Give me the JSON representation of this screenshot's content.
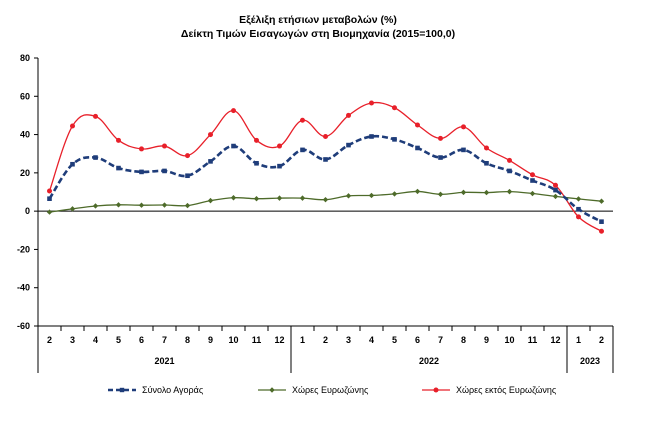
{
  "chart_data": {
    "type": "line",
    "title": "Εξέλιξη ετήσιων μεταβολών (%)",
    "subtitle": "Δείκτη Τιμών Εισαγωγών στη Βιομηχανία (2015=100,0)",
    "categories": [
      "2",
      "3",
      "4",
      "5",
      "6",
      "7",
      "8",
      "9",
      "10",
      "11",
      "12",
      "1",
      "2",
      "3",
      "4",
      "5",
      "6",
      "7",
      "8",
      "9",
      "10",
      "11",
      "12",
      "1",
      "2"
    ],
    "year_groups": [
      {
        "label": "2021",
        "start": 0,
        "end": 10
      },
      {
        "label": "2022",
        "start": 11,
        "end": 22
      },
      {
        "label": "2023",
        "start": 23,
        "end": 24
      }
    ],
    "ylim": [
      -60,
      80
    ],
    "yticks": [
      -60,
      -40,
      -20,
      0,
      20,
      40,
      60,
      80
    ],
    "grid": false,
    "legend_position": "bottom",
    "series": [
      {
        "name": "Σύνολο Αγοράς",
        "color": "#1f3d7a",
        "style": "dashed",
        "marker": "square",
        "values": [
          6.5,
          24.5,
          28,
          22.5,
          20.5,
          21,
          18.5,
          26,
          34,
          25,
          23.5,
          32,
          27,
          34.5,
          39,
          37.5,
          33,
          28,
          32,
          25,
          21,
          16,
          11,
          1,
          -5.5
        ]
      },
      {
        "name": "Χώρες Ευρωζώνης",
        "color": "#4e6b2a",
        "style": "solid",
        "marker": "diamond",
        "values": [
          -0.5,
          1.2,
          2.7,
          3.3,
          3.1,
          3.2,
          2.9,
          5.5,
          7,
          6.5,
          6.8,
          6.8,
          6,
          8,
          8.2,
          9,
          10.3,
          8.8,
          9.8,
          9.7,
          10.2,
          9.2,
          7.7,
          6.4,
          5.2
        ]
      },
      {
        "name": "Χώρες εκτός Ευρωζώνης",
        "color": "#e8202a",
        "style": "solid",
        "marker": "circle",
        "values": [
          10.5,
          44.5,
          49.5,
          37,
          32.5,
          34,
          29,
          40,
          52.5,
          37,
          34,
          47.5,
          39,
          50,
          56.5,
          54,
          45,
          38,
          44,
          33,
          26.5,
          19,
          13.5,
          -3,
          -10.5
        ]
      }
    ]
  }
}
